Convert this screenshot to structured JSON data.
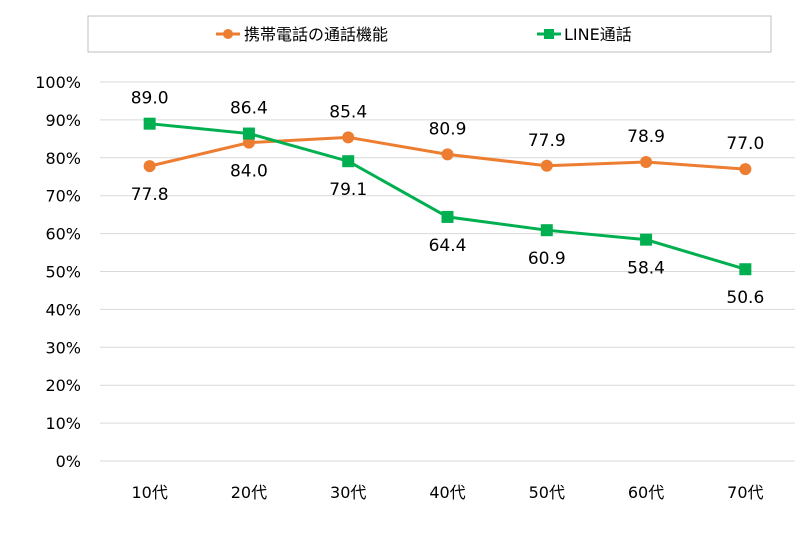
{
  "chart_data": {
    "type": "line",
    "categories": [
      "10代",
      "20代",
      "30代",
      "40代",
      "50代",
      "60代",
      "70代"
    ],
    "series": [
      {
        "name": "携帯電話の通話機能",
        "values": [
          77.8,
          84.0,
          85.4,
          80.9,
          77.9,
          78.9,
          77.0
        ],
        "color": "#ED7D31",
        "marker": "circle",
        "labels": [
          "77.8",
          "84.0",
          "85.4",
          "80.9",
          "77.9",
          "78.9",
          "77.0"
        ]
      },
      {
        "name": "LINE通話",
        "values": [
          89.0,
          86.4,
          79.1,
          64.4,
          60.9,
          58.4,
          50.6
        ],
        "color": "#00B050",
        "marker": "square",
        "labels": [
          "89.0",
          "86.4",
          "79.1",
          "64.4",
          "60.9",
          "58.4",
          "50.6"
        ]
      }
    ],
    "yticks": [
      "0%",
      "10%",
      "20%",
      "30%",
      "40%",
      "50%",
      "60%",
      "70%",
      "80%",
      "90%",
      "100%"
    ],
    "ylim": [
      0,
      100
    ],
    "grid": true,
    "legend": "top"
  }
}
